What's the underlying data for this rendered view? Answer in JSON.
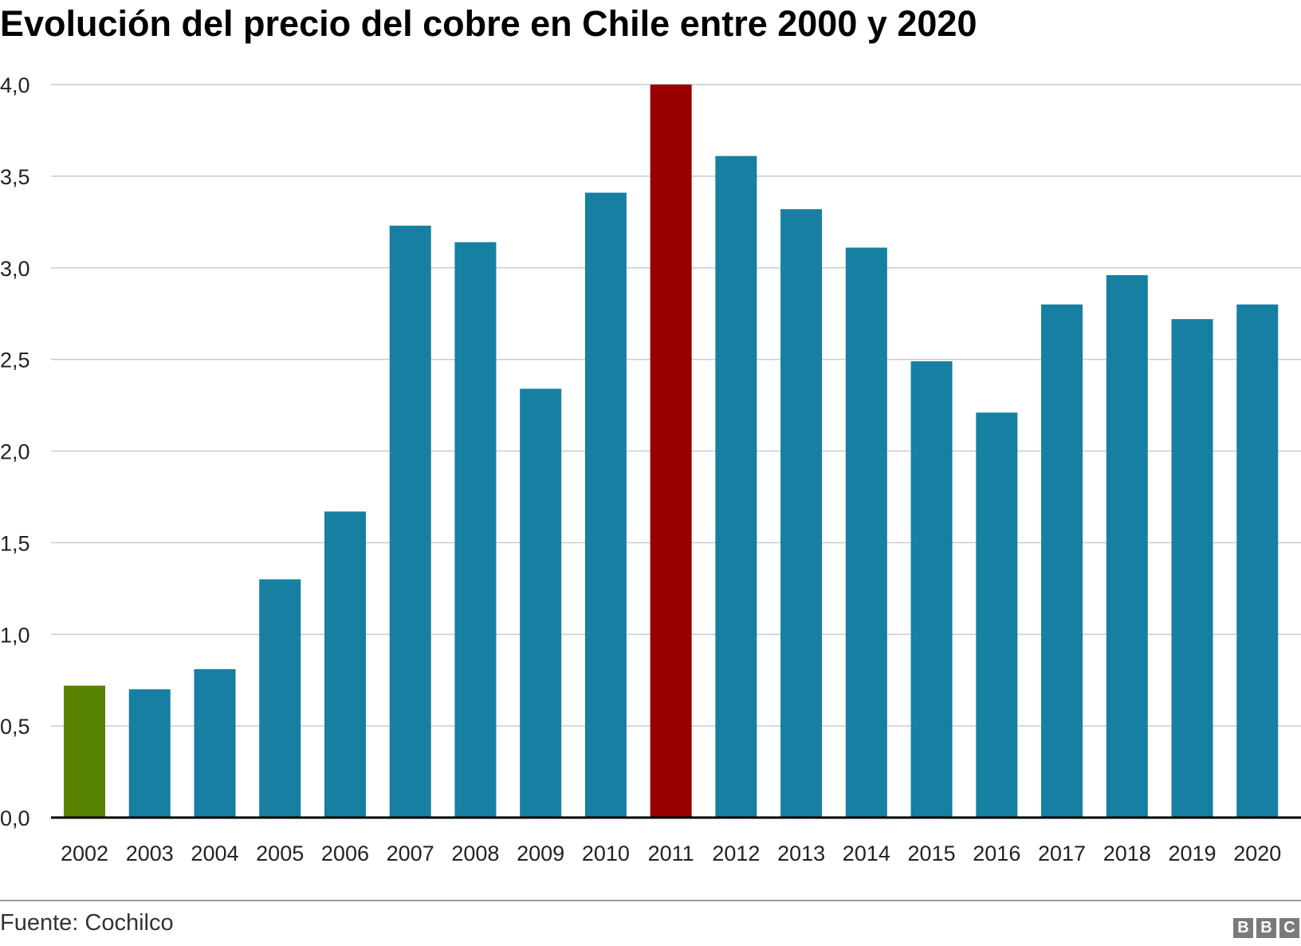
{
  "header": {
    "title": "Evolución del precio del cobre en Chile entre 2000 y 2020"
  },
  "footer": {
    "source": "Fuente: Cochilco",
    "logo_letters": [
      "B",
      "B",
      "C"
    ]
  },
  "chart_data": {
    "type": "bar",
    "categories": [
      "2002",
      "2003",
      "2004",
      "2005",
      "2006",
      "2007",
      "2008",
      "2009",
      "2010",
      "2011",
      "2012",
      "2013",
      "2014",
      "2015",
      "2016",
      "2017",
      "2018",
      "2019",
      "2020"
    ],
    "values": [
      0.72,
      0.7,
      0.81,
      1.3,
      1.67,
      3.23,
      3.14,
      2.34,
      3.41,
      4.0,
      3.61,
      3.32,
      3.11,
      2.49,
      2.21,
      2.8,
      2.96,
      2.72,
      2.8
    ],
    "ylim": [
      0,
      4.0
    ],
    "yticks": [
      0.0,
      0.5,
      1.0,
      1.5,
      2.0,
      2.5,
      3.0,
      3.5,
      4.0
    ],
    "ytick_labels": [
      "0,0",
      "0,5",
      "1,0",
      "1,5",
      "2,0",
      "2,5",
      "3,0",
      "3,5",
      "4,0"
    ],
    "grid": true,
    "colors": {
      "default": "#167fa2",
      "2002": "#588300",
      "2011": "#990000"
    }
  }
}
